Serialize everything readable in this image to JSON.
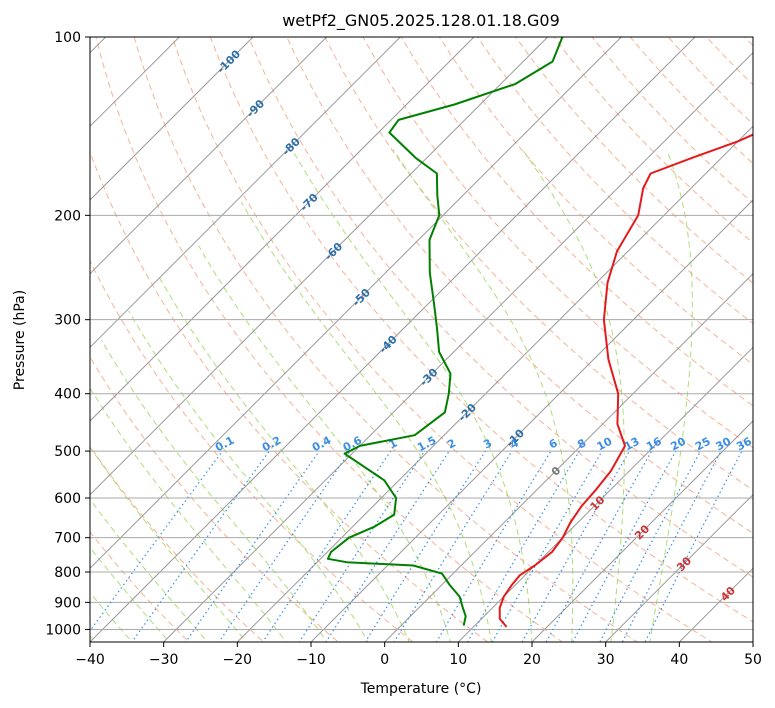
{
  "chart_data": {
    "type": "line",
    "title": "wetPf2_GN05.2025.128.01.18.G09",
    "xlabel": "Temperature (°C)",
    "ylabel": "Pressure (hPa)",
    "xlim": [
      -40,
      50
    ],
    "ylim": [
      1050,
      100
    ],
    "y_scale": "log",
    "x_ticks": [
      -40,
      -30,
      -20,
      -10,
      0,
      10,
      20,
      30,
      40,
      50
    ],
    "x_tick_labels": [
      "−40",
      "−30",
      "−20",
      "−10",
      "0",
      "10",
      "20",
      "30",
      "40",
      "50"
    ],
    "y_ticks": [
      100,
      200,
      300,
      400,
      500,
      600,
      700,
      800,
      900,
      1000
    ],
    "y_tick_labels": [
      "100",
      "200",
      "300",
      "400",
      "500",
      "600",
      "700",
      "800",
      "900",
      "1000"
    ],
    "grid": true,
    "series": [
      {
        "color": "#e41a1c",
        "points": [
          [
            14.5,
            990
          ],
          [
            12.5,
            960
          ],
          [
            11.0,
            920
          ],
          [
            10.0,
            880
          ],
          [
            9.5,
            840
          ],
          [
            9.3,
            810
          ],
          [
            10.0,
            780
          ],
          [
            10.5,
            740
          ],
          [
            10.0,
            700
          ],
          [
            9.0,
            660
          ],
          [
            8.3,
            620
          ],
          [
            8.0,
            580
          ],
          [
            7.5,
            540
          ],
          [
            6.0,
            490
          ],
          [
            2.0,
            450
          ],
          [
            -2.0,
            400
          ],
          [
            -8.0,
            350
          ],
          [
            -14.0,
            300
          ],
          [
            -18.5,
            260
          ],
          [
            -21.5,
            230
          ],
          [
            -23.5,
            200
          ],
          [
            -26.5,
            180
          ],
          [
            -27.5,
            170
          ],
          [
            -24.0,
            160
          ],
          [
            -20.0,
            150
          ],
          [
            -17.0,
            140
          ],
          [
            -19.0,
            130
          ],
          [
            -22.0,
            120
          ],
          [
            -26.0,
            110
          ],
          [
            -30.0,
            100
          ]
        ]
      },
      {
        "color": "#008000",
        "points": [
          [
            8.5,
            985
          ],
          [
            7.5,
            950
          ],
          [
            6.0,
            920
          ],
          [
            4.0,
            880
          ],
          [
            1.0,
            840
          ],
          [
            -1.5,
            805
          ],
          [
            -6.5,
            780
          ],
          [
            -16.0,
            770
          ],
          [
            -19.0,
            760
          ],
          [
            -19.5,
            740
          ],
          [
            -19.0,
            700
          ],
          [
            -17.0,
            670
          ],
          [
            -16.0,
            640
          ],
          [
            -18.0,
            600
          ],
          [
            -22.0,
            560
          ],
          [
            -31.0,
            505
          ],
          [
            -30.0,
            490
          ],
          [
            -24.0,
            470
          ],
          [
            -23.0,
            430
          ],
          [
            -25.0,
            400
          ],
          [
            -27.5,
            370
          ],
          [
            -32.0,
            340
          ],
          [
            -35.5,
            310
          ],
          [
            -39.5,
            280
          ],
          [
            -44.0,
            250
          ],
          [
            -48.5,
            220
          ],
          [
            -50.5,
            200
          ],
          [
            -53.5,
            185
          ],
          [
            -56.5,
            170
          ],
          [
            -61.5,
            160
          ],
          [
            -68.5,
            145
          ],
          [
            -69.0,
            138
          ],
          [
            -63.5,
            130
          ],
          [
            -58.0,
            120
          ],
          [
            -56.0,
            110
          ],
          [
            -58.0,
            100
          ]
        ]
      }
    ],
    "skew": 45,
    "isotherm_labels": [
      "-100",
      "-90",
      "-80",
      "-70",
      "-60",
      "-50",
      "-40",
      "-30",
      "-20",
      "-10",
      "0",
      "10",
      "20",
      "30",
      "40"
    ],
    "mixing_ratio_labels": [
      "0.1",
      "0.2",
      "0.4",
      "0.6",
      "1",
      "1.5",
      "2",
      "3",
      "4",
      "6",
      "8",
      "10",
      "13",
      "16",
      "20",
      "25",
      "30",
      "36"
    ]
  }
}
